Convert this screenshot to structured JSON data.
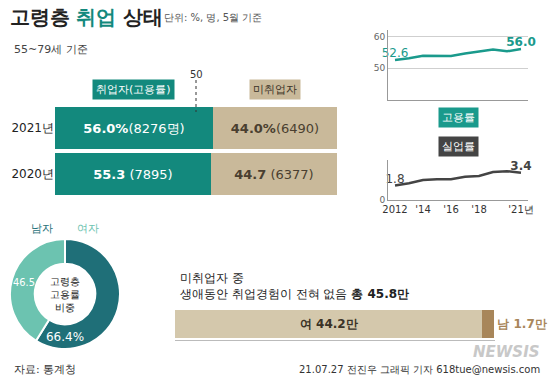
{
  "title": [
    "고령층",
    "취업",
    "상태"
  ],
  "subtitle": "단위: %, 명, 5월 기준",
  "note": "55~79세 기준",
  "source": "자료: 통계청",
  "credit": "21.07.27 전진우 그래픽 기자 618tue@newsis.com",
  "watermark": "NEWSIS",
  "chart_data": [
    {
      "type": "bar",
      "orientation": "horizontal",
      "stacked": true,
      "data_labels": true,
      "tick_labels": "y",
      "categories": [
        "2021년",
        "2020년"
      ],
      "series": [
        {
          "name": "취업자(고용률)",
          "color": "#13897d",
          "values": [
            56.0,
            55.3
          ],
          "value_labels": [
            "56.0%",
            "55.3"
          ],
          "count_labels": [
            "(8276명)",
            " (7895)"
          ]
        },
        {
          "name": "미취업자",
          "color": "#c9b99a",
          "values": [
            44.0,
            44.7
          ],
          "value_labels": [
            "44.0%",
            "44.7"
          ],
          "count_labels": [
            "(6490)",
            " (6377)"
          ]
        }
      ],
      "xlim": [
        0,
        100
      ],
      "annotations": [
        {
          "text": "50",
          "x": 50
        }
      ]
    },
    {
      "type": "line",
      "data_labels": true,
      "grid": true,
      "tick_labels": "y",
      "x": [
        2012,
        2013,
        2014,
        2015,
        2016,
        2017,
        2018,
        2019,
        2020,
        2021
      ],
      "series": [
        {
          "name": "고용률",
          "color": "#1a9a8c",
          "values": [
            52.6,
            53.1,
            53.9,
            53.9,
            53.8,
            54.6,
            55.3,
            55.9,
            55.3,
            56.0
          ],
          "value_labels": [
            "52.6",
            null,
            null,
            null,
            null,
            null,
            null,
            null,
            null,
            "56.0"
          ]
        }
      ],
      "xlim": [
        2011.5,
        2021.5
      ],
      "xticks": [
        2012,
        {
          "value": 2014,
          "label": "'14"
        },
        {
          "value": 2016,
          "label": "'16"
        },
        {
          "value": 2018,
          "label": "'18"
        },
        {
          "value": 2021,
          "label": "'21년"
        }
      ],
      "ylim": [
        40,
        62
      ],
      "yticks": [
        50,
        60
      ]
    },
    {
      "type": "line",
      "data_labels": true,
      "grid": true,
      "tick_labels": true,
      "x": [
        2012,
        2013,
        2014,
        2015,
        2016,
        2017,
        2018,
        2019,
        2020,
        2021
      ],
      "series": [
        {
          "name": "실업률",
          "color": "#444444",
          "values": [
            1.8,
            2.1,
            2.5,
            2.6,
            2.6,
            2.9,
            3.0,
            3.5,
            3.6,
            3.4
          ],
          "value_labels": [
            "1.8",
            null,
            null,
            null,
            null,
            null,
            null,
            null,
            null,
            "3.4"
          ]
        }
      ],
      "xlim": [
        2011.5,
        2021.5
      ],
      "xticks": [
        2012,
        {
          "value": 2014,
          "label": "'14"
        },
        {
          "value": 2016,
          "label": "'16"
        },
        {
          "value": 2018,
          "label": "'18"
        },
        {
          "value": 2021,
          "label": "'21년"
        }
      ],
      "ylim": [
        0,
        5
      ],
      "yticks": [
        0
      ]
    },
    {
      "type": "donut",
      "data_labels": true,
      "title": [
        "고령층",
        "고용률",
        "비중"
      ],
      "categories": [
        "남자",
        "여자"
      ],
      "values": [
        66.4,
        46.5
      ],
      "value_labels": [
        "66.4%",
        "46.5"
      ],
      "colors": [
        "#1f6f78",
        "#6cc3b0"
      ]
    },
    {
      "type": "bar",
      "orientation": "horizontal",
      "stacked": true,
      "data_labels": true,
      "tick_labels": false,
      "title": "미취업자 중",
      "subtitle": "생애동안 취업경험이 전혀 없음",
      "total_label": "총 45.8만",
      "categories": [
        null
      ],
      "series": [
        {
          "color": "#d4c8ac",
          "values": [
            44.2
          ],
          "value_labels": [
            "여 44.2만"
          ]
        },
        {
          "color": "#a8865a",
          "values": [
            1.7
          ],
          "value_labels": [
            "남 1.7만"
          ]
        }
      ],
      "xlim": [
        0,
        46
      ]
    }
  ]
}
